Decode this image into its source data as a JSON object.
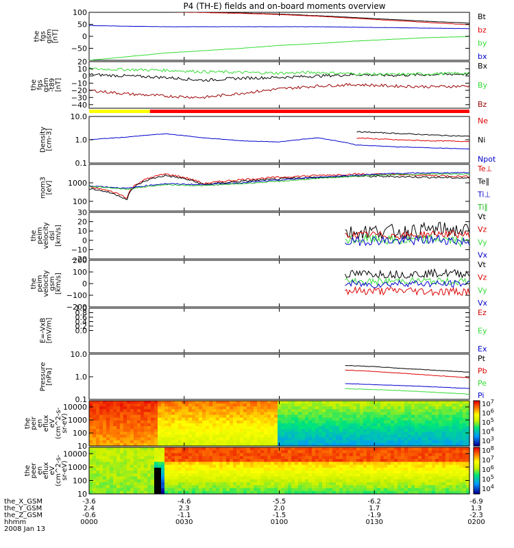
{
  "title": "P4 (TH-E) fields and on-board moments overview",
  "colors": {
    "black": "#000000",
    "red": "#dd0000",
    "darkred": "#990000",
    "green": "#33dd33",
    "lightgreen": "#22bb22",
    "blue": "#0000cc",
    "yellow": "#ffff00"
  },
  "mode_bar": {
    "segments": [
      {
        "from": 0,
        "to": 0.16,
        "color": "#ffff00"
      },
      {
        "from": 0.16,
        "to": 1,
        "color": "#ff0000"
      }
    ]
  },
  "ephemeris": {
    "rows": [
      {
        "label": "the_X_GSM",
        "values": [
          "-3.6",
          "-4.6",
          "-5.5",
          "-6.2",
          "-6.9"
        ]
      },
      {
        "label": "the_Y_GSM",
        "values": [
          "2.4",
          "2.3",
          "2.0",
          "1.7",
          "1.3"
        ]
      },
      {
        "label": "the_Z_GSM",
        "values": [
          "-0.6",
          "-1.1",
          "-1.5",
          "-1.9",
          "-2.3"
        ]
      },
      {
        "label": "hhmm",
        "values": [
          "0000",
          "0030",
          "0100",
          "0130",
          "0200"
        ]
      }
    ],
    "date": "2008 Jan 13"
  },
  "chart_data": [
    {
      "type": "line",
      "ylabel": [
        "the",
        "fgs",
        "gsm",
        "[nT]"
      ],
      "ylim": [
        -100,
        100
      ],
      "yscale": "linear",
      "ticks": [
        {
          "v": 100,
          "t": "100"
        },
        {
          "v": 50,
          "t": "50"
        },
        {
          "v": 0,
          "t": "0"
        },
        {
          "v": -50,
          "t": "−50"
        }
      ],
      "x": [
        0,
        0.1,
        0.2,
        0.3,
        0.4,
        0.5,
        0.6,
        0.7,
        0.8,
        0.9,
        1.0
      ],
      "series": [
        {
          "name": "Bt",
          "color": "#000000",
          "values": [
            108,
            105,
            103,
            100,
            97,
            93,
            86,
            78,
            70,
            62,
            55
          ],
          "noise": 0.5
        },
        {
          "name": "bz",
          "color": "#dd0000",
          "values": [
            107,
            104,
            102,
            99,
            96,
            91,
            84,
            75,
            66,
            57,
            48
          ],
          "noise": 0.5
        },
        {
          "name": "by",
          "color": "#33dd33",
          "values": [
            -100,
            -85,
            -70,
            -60,
            -50,
            -38,
            -30,
            -20,
            -12,
            -5,
            -1
          ],
          "noise": 0.6
        },
        {
          "name": "bx",
          "color": "#0000cc",
          "values": [
            45,
            42,
            40,
            40,
            40,
            40,
            40,
            38,
            36,
            34,
            32
          ],
          "noise": 0.4
        }
      ]
    },
    {
      "type": "line",
      "ylabel": [
        "the",
        "fgs",
        "gsm",
        "-t89",
        "[nT]"
      ],
      "ylim": [
        -45,
        20
      ],
      "yscale": "linear",
      "ticks": [
        {
          "v": 20,
          "t": "20"
        },
        {
          "v": 10,
          "t": "10"
        },
        {
          "v": 0,
          "t": "0"
        },
        {
          "v": -10,
          "t": "−10"
        },
        {
          "v": -20,
          "t": "−20"
        },
        {
          "v": -30,
          "t": "−30"
        },
        {
          "v": -40,
          "t": "−40"
        }
      ],
      "x": [
        0,
        0.1,
        0.2,
        0.3,
        0.4,
        0.5,
        0.6,
        0.7,
        0.8,
        0.9,
        1.0
      ],
      "series": [
        {
          "name": "Bx",
          "color": "#000000",
          "values": [
            2,
            0,
            -2,
            -6,
            -3,
            -2,
            0,
            2,
            1,
            2,
            3
          ],
          "noise": 2
        },
        {
          "name": "By",
          "color": "#33dd33",
          "values": [
            10,
            9,
            8,
            6,
            5,
            4,
            5,
            3,
            2,
            3,
            4
          ],
          "noise": 2
        },
        {
          "name": "Bz",
          "color": "#990000",
          "values": [
            -20,
            -25,
            -28,
            -30,
            -24,
            -18,
            -14,
            -12,
            -14,
            -15,
            -14
          ],
          "noise": 2
        }
      ]
    },
    {
      "type": "line",
      "ylabel": [
        "Density",
        "[cm-3]"
      ],
      "ylim": [
        0.1,
        10
      ],
      "yscale": "log",
      "ticks": [
        {
          "v": 10,
          "t": "10.0"
        },
        {
          "v": 1,
          "t": "1.0"
        },
        {
          "v": 0.1,
          "t": "0.1"
        }
      ],
      "x": [
        0,
        0.1,
        0.2,
        0.3,
        0.4,
        0.5,
        0.6,
        0.7,
        0.8,
        0.9,
        1.0
      ],
      "series": [
        {
          "name": "Ne",
          "color": "#dd0000",
          "values": [
            null,
            null,
            null,
            null,
            null,
            null,
            null,
            1.2,
            1.0,
            0.9,
            0.85
          ],
          "noise": 0.02
        },
        {
          "name": "Ni",
          "color": "#000000",
          "values": [
            null,
            null,
            null,
            null,
            null,
            null,
            null,
            2.2,
            1.9,
            1.6,
            1.4
          ],
          "noise": 0.02
        },
        {
          "name": "Npot",
          "color": "#0000cc",
          "values": [
            1.0,
            1.3,
            1.8,
            1.2,
            0.9,
            0.8,
            1.2,
            0.6,
            0.5,
            0.45,
            0.4
          ],
          "noise": 0.01
        }
      ]
    },
    {
      "type": "line",
      "ylabel": [
        "mom3",
        "[eV]"
      ],
      "ylim": [
        30,
        10000
      ],
      "yscale": "log",
      "ticks": [
        {
          "v": 1000,
          "t": "1000"
        },
        {
          "v": 100,
          "t": "100"
        }
      ],
      "x": [
        0,
        0.1,
        0.2,
        0.3,
        0.4,
        0.5,
        0.6,
        0.7,
        0.8,
        0.9,
        1.0
      ],
      "series": [
        {
          "name": "Te⊥",
          "color": "#dd0000",
          "values": [
            600,
            150,
            3000,
            900,
            1500,
            2000,
            2500,
            3000,
            2800,
            2500,
            2200
          ],
          "noise": 0.05
        },
        {
          "name": "Te∥",
          "color": "#000000",
          "values": [
            500,
            120,
            2500,
            800,
            1200,
            1600,
            2000,
            2300,
            2200,
            2000,
            1800
          ],
          "noise": 0.05
        },
        {
          "name": "Ti⊥",
          "color": "#0000cc",
          "values": [
            700,
            500,
            900,
            800,
            1000,
            1400,
            2000,
            2600,
            3200,
            3500,
            3600
          ],
          "noise": 0.03
        },
        {
          "name": "Ti∥",
          "color": "#22bb22",
          "values": [
            650,
            450,
            800,
            700,
            900,
            1200,
            1700,
            2300,
            2800,
            3000,
            3100
          ],
          "noise": 0.03
        }
      ]
    },
    {
      "type": "line",
      "ylabel": [
        "the",
        "peim",
        "velocity",
        "dsl",
        "[km/s]"
      ],
      "ylim": [
        -20,
        30
      ],
      "yscale": "linear",
      "ticks": [
        {
          "v": 30,
          "t": "30"
        },
        {
          "v": 20,
          "t": "20"
        },
        {
          "v": 10,
          "t": "10"
        },
        {
          "v": 0,
          "t": "0"
        },
        {
          "v": -10,
          "t": "−10"
        },
        {
          "v": -20,
          "t": "−20"
        }
      ],
      "x": [
        0.67,
        0.75,
        0.83,
        0.92,
        1.0
      ],
      "series": [
        {
          "name": "Vt",
          "color": "#000000",
          "values": [
            8,
            10,
            9,
            12,
            10
          ],
          "noise": 8
        },
        {
          "name": "Vz",
          "color": "#dd0000",
          "values": [
            5,
            6,
            5,
            7,
            6
          ],
          "noise": 4
        },
        {
          "name": "Vy",
          "color": "#33dd33",
          "values": [
            0,
            1,
            -1,
            2,
            -3
          ],
          "noise": 5
        },
        {
          "name": "Vx",
          "color": "#0000cc",
          "values": [
            -2,
            0,
            -1,
            1,
            -2
          ],
          "noise": 5
        }
      ]
    },
    {
      "type": "line",
      "ylabel": [
        "the",
        "peim",
        "velocity",
        "gsm",
        "[km/s]"
      ],
      "ylim": [
        -200,
        200
      ],
      "yscale": "linear",
      "ticks": [
        {
          "v": 200,
          "t": "200"
        },
        {
          "v": 100,
          "t": "100"
        },
        {
          "v": 0,
          "t": "0"
        },
        {
          "v": -100,
          "t": "−100"
        },
        {
          "v": -200,
          "t": "−200"
        }
      ],
      "x": [
        0.67,
        0.75,
        0.83,
        0.92,
        1.0
      ],
      "series": [
        {
          "name": "Vt",
          "color": "#000000",
          "values": [
            80,
            85,
            80,
            90,
            85
          ],
          "noise": 35
        },
        {
          "name": "Vz",
          "color": "#dd0000",
          "values": [
            -60,
            -65,
            -60,
            -70,
            -65
          ],
          "noise": 35
        },
        {
          "name": "Vy",
          "color": "#33dd33",
          "values": [
            20,
            15,
            25,
            20,
            15
          ],
          "noise": 30
        },
        {
          "name": "Vx",
          "color": "#0000cc",
          "values": [
            0,
            -10,
            5,
            -5,
            0
          ],
          "noise": 30
        }
      ]
    },
    {
      "type": "line",
      "ylabel": [
        "E=-VxB",
        "[mV/m]"
      ],
      "ylim": [
        -1,
        1
      ],
      "yscale": "linear",
      "ticks": [
        {
          "v": 1,
          "t": "1.0"
        },
        {
          "v": 0.8,
          "t": "0.8"
        },
        {
          "v": 0.6,
          "t": "0.6"
        },
        {
          "v": 0.4,
          "t": "0.4"
        },
        {
          "v": 0.2,
          "t": "0.2"
        },
        {
          "v": 0,
          "t": "0.0"
        }
      ],
      "x": [],
      "series": [
        {
          "name": "Ez",
          "color": "#dd0000",
          "values": []
        },
        {
          "name": "Ey",
          "color": "#33dd33",
          "values": []
        },
        {
          "name": "Ex",
          "color": "#0000cc",
          "values": []
        }
      ]
    },
    {
      "type": "line",
      "ylabel": [
        "Pressure",
        "[nPa]"
      ],
      "ylim": [
        0.1,
        10
      ],
      "yscale": "log",
      "ticks": [
        {
          "v": 10,
          "t": "10.0"
        },
        {
          "v": 1,
          "t": "1.0"
        },
        {
          "v": 0.1,
          "t": "0.1"
        }
      ],
      "x": [
        0.67,
        0.75,
        0.83,
        0.92,
        1.0
      ],
      "series": [
        {
          "name": "Pt",
          "color": "#000000",
          "values": [
            3.2,
            2.8,
            2.3,
            1.9,
            1.6
          ],
          "noise": 0.01
        },
        {
          "name": "Pb",
          "color": "#dd0000",
          "values": [
            2.0,
            1.7,
            1.4,
            1.1,
            0.9
          ],
          "noise": 0.01
        },
        {
          "name": "Pe",
          "color": "#33dd33",
          "values": [
            0.3,
            0.27,
            0.24,
            0.2,
            0.17
          ],
          "noise": 0.01
        },
        {
          "name": "Pi",
          "color": "#0000cc",
          "values": [
            0.5,
            0.45,
            0.4,
            0.35,
            0.3
          ],
          "noise": 0.01
        }
      ]
    },
    {
      "type": "heatmap",
      "ylabel": [
        "the",
        "peir",
        "en",
        "eflux",
        "eV",
        "(cm^2-s-",
        "sr-eV)"
      ],
      "ylim": [
        10,
        30000
      ],
      "yscale": "log",
      "ticks": [
        {
          "v": 10000,
          "t": "10000"
        },
        {
          "v": 1000,
          "t": "1000"
        },
        {
          "v": 100,
          "t": "100"
        },
        {
          "v": 10,
          "t": "10"
        }
      ],
      "colorbar": {
        "min_exp": 3,
        "max_exp": 7,
        "labels": [
          "10^7",
          "10^6",
          "10^5",
          "10^4",
          "10^3"
        ]
      },
      "description_bins": [
        {
          "x": [
            0,
            0.18
          ],
          "high_energy_level": 0.95,
          "low_energy_level": 0.8
        },
        {
          "x": [
            0.18,
            0.5
          ],
          "high_energy_level": 0.85,
          "low_energy_level": 0.6
        },
        {
          "x": [
            0.5,
            1.0
          ],
          "high_energy_level": 0.55,
          "low_energy_level": 0.25
        }
      ]
    },
    {
      "type": "heatmap",
      "ylabel": [
        "the",
        "peer",
        "en",
        "eflux",
        "eV",
        "(cm^2-s-",
        "sr-eV)"
      ],
      "ylim": [
        10,
        30000
      ],
      "yscale": "log",
      "ticks": [
        {
          "v": 10000,
          "t": "10000"
        },
        {
          "v": 1000,
          "t": "1000"
        },
        {
          "v": 100,
          "t": "100"
        },
        {
          "v": 10,
          "t": "10"
        }
      ],
      "colorbar": {
        "min_exp": 4,
        "max_exp": 8,
        "labels": [
          "10^8",
          "10^7",
          "10^6",
          "10^5",
          "10^4"
        ]
      },
      "description_bins": [
        {
          "x": [
            0,
            0.17
          ],
          "high_energy_level": 0.55,
          "low_energy_level": 0.5
        },
        {
          "x": [
            0.17,
            0.2
          ],
          "high_energy_level": 0.6,
          "low_energy_level": 0.0
        },
        {
          "x": [
            0.2,
            1.0
          ],
          "high_energy_level": 0.9,
          "low_energy_level": 0.45
        }
      ]
    }
  ]
}
